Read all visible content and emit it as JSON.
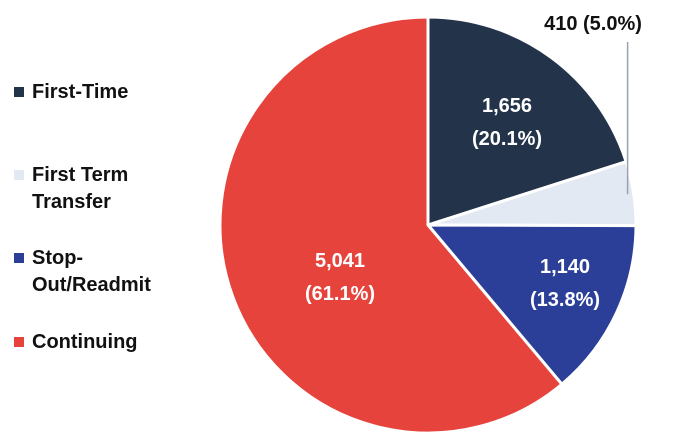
{
  "chart_data": {
    "type": "pie",
    "title": "",
    "legend_position": "left",
    "slices": [
      {
        "name": "First-Time",
        "value": 1656,
        "percent": 20.1,
        "value_label": "1,656",
        "percent_label": "(20.1%)",
        "color": "#22334a",
        "label_color": "#ffffff"
      },
      {
        "name": "First Term Transfer",
        "value": 410,
        "percent": 5.0,
        "value_label": "410 (5.0%)",
        "percent_label": "",
        "color": "#e3e9f2",
        "label_color": "#111111"
      },
      {
        "name": "Stop-Out/Readmit",
        "value": 1140,
        "percent": 13.8,
        "value_label": "1,140",
        "percent_label": "(13.8%)",
        "color": "#2b3f98",
        "label_color": "#ffffff"
      },
      {
        "name": "Continuing",
        "value": 5041,
        "percent": 61.1,
        "value_label": "5,041",
        "percent_label": "(61.1%)",
        "color": "#e5433b",
        "label_color": "#ffffff"
      }
    ]
  },
  "legend": {
    "items": [
      {
        "label_line1": "First-Time",
        "label_line2": "",
        "color": "#22334a"
      },
      {
        "label_line1": "First Term",
        "label_line2": "Transfer",
        "color": "#e3e9f2"
      },
      {
        "label_line1": "Stop-",
        "label_line2": "Out/Readmit",
        "color": "#2b3f98"
      },
      {
        "label_line1": "Continuing",
        "label_line2": "",
        "color": "#e5433b"
      }
    ]
  }
}
